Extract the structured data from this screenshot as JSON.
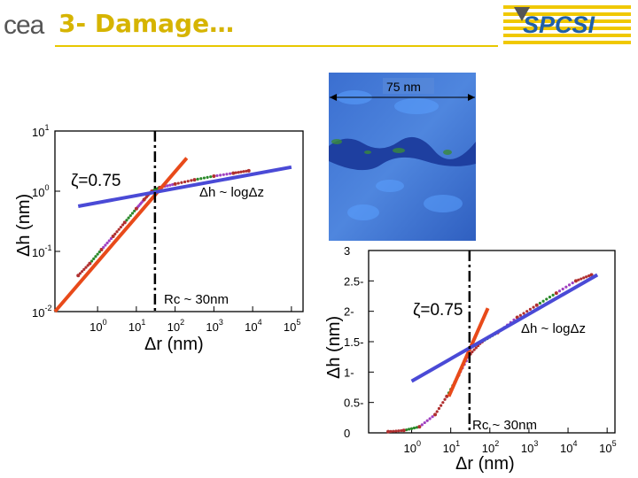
{
  "header": {
    "logo_text": "cea",
    "title": "3- Damage…",
    "brand_text": "SPCSI",
    "colors": {
      "title": "#d6b400",
      "rule": "#e8c800",
      "brand": "#1f5fa8"
    }
  },
  "image_panel": {
    "scale_label": "75 nm"
  },
  "chart_data": [
    {
      "type": "scatter",
      "scale": "log-log",
      "xlabel": "Δr (nm)",
      "ylabel": "Δh (nm)",
      "x_tick_exponents": [
        0,
        1,
        2,
        3,
        4,
        5
      ],
      "y_tick_exponents": [
        -2,
        -1,
        0,
        1
      ],
      "xlim_exp": [
        -1.1,
        5.3
      ],
      "ylim_exp": [
        -2,
        1
      ],
      "annotations": {
        "zeta": "ζ=0.75",
        "log_law": "Δh ~ logΔz",
        "rc": "Rc ~ 30nm"
      },
      "rc_log10": 1.48,
      "data_points": [
        [
          -0.5,
          -1.4
        ],
        [
          -0.2,
          -1.2
        ],
        [
          0.1,
          -0.97
        ],
        [
          0.4,
          -0.75
        ],
        [
          0.7,
          -0.52
        ],
        [
          1.0,
          -0.29
        ],
        [
          1.2,
          -0.14
        ],
        [
          1.4,
          0.0
        ],
        [
          1.6,
          0.06
        ],
        [
          2.0,
          0.12
        ],
        [
          2.5,
          0.19
        ],
        [
          3.0,
          0.25
        ],
        [
          3.5,
          0.3
        ],
        [
          3.9,
          0.34
        ]
      ],
      "power_fit": [
        [
          -1.1,
          -2.0
        ],
        [
          2.3,
          0.55
        ]
      ],
      "log_fit": [
        [
          -0.5,
          -0.25
        ],
        [
          5.0,
          0.4
        ]
      ],
      "colors": {
        "power_fit": "#e84a1a",
        "log_fit": "#4a4ad6",
        "data": "#b03030"
      }
    },
    {
      "type": "scatter",
      "scale": "semilog-x",
      "xlabel": "Δr (nm)",
      "ylabel": "Δh (nm)",
      "x_tick_exponents": [
        0,
        1,
        2,
        3,
        4,
        5
      ],
      "y_ticks": [
        "0",
        "0.5-",
        "1-",
        "1.5-",
        "2-",
        "2.5-",
        "3"
      ],
      "xlim_exp": [
        -1.1,
        5.2
      ],
      "ylim": [
        0,
        3
      ],
      "annotations": {
        "zeta": "ζ=0.75",
        "log_law": "Δh ~ logΔz",
        "rc": "Rc ~ 30nm"
      },
      "rc_log10": 1.48,
      "data_points": [
        [
          -0.6,
          0.02
        ],
        [
          -0.2,
          0.04
        ],
        [
          0.2,
          0.1
        ],
        [
          0.6,
          0.3
        ],
        [
          0.9,
          0.6
        ],
        [
          1.2,
          0.95
        ],
        [
          1.5,
          1.3
        ],
        [
          1.8,
          1.5
        ],
        [
          2.2,
          1.65
        ],
        [
          2.7,
          1.9
        ],
        [
          3.2,
          2.1
        ],
        [
          3.7,
          2.3
        ],
        [
          4.2,
          2.5
        ],
        [
          4.6,
          2.6
        ]
      ],
      "power_fit": [
        [
          0.95,
          0.6
        ],
        [
          1.95,
          2.05
        ]
      ],
      "log_fit": [
        [
          0.0,
          0.85
        ],
        [
          4.75,
          2.6
        ]
      ],
      "colors": {
        "power_fit": "#e84a1a",
        "log_fit": "#4a4ad6",
        "data": "#b03030"
      }
    }
  ]
}
